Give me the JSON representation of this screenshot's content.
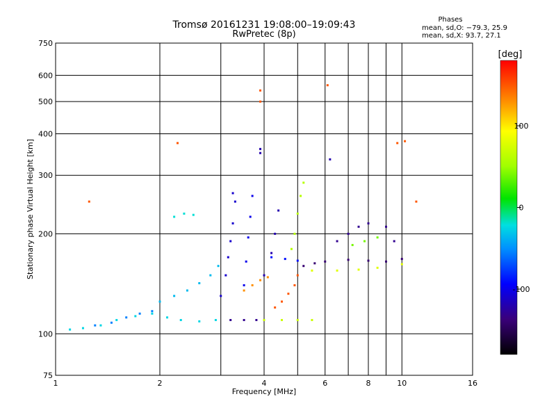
{
  "chart_data": {
    "type": "scatter",
    "title": "Tromsø 20161231 19:08:00–19:09:43",
    "subtitle": "RwPretec (8p)",
    "xlabel": "Frequency [MHz]",
    "ylabel": "Stationary phase Virtual Height [km]",
    "x_scale": "log",
    "y_scale": "log",
    "xlim": [
      1,
      16
    ],
    "ylim": [
      75,
      750
    ],
    "x_ticks": [
      1,
      2,
      4,
      6,
      8,
      10,
      16
    ],
    "x_grid": [
      1,
      2,
      3,
      4,
      5,
      6,
      7,
      8,
      9,
      10,
      16
    ],
    "y_ticks": [
      75,
      100,
      200,
      300,
      400,
      500,
      600,
      750
    ],
    "y_grid": [
      75,
      100,
      200,
      300,
      400,
      500,
      600,
      750
    ],
    "grid": true,
    "phase_stats": {
      "title": "Phases",
      "line1": "mean, sd,O: −79.3, 25.9",
      "line2": "mean, sd,X: 93.7, 27.1"
    },
    "colorbar": {
      "label": "[deg]",
      "range": [
        -180,
        180
      ],
      "ticks": [
        100,
        0,
        -100
      ]
    },
    "traces": [
      {
        "name": "",
        "phase": -25,
        "points": [
          [
            1.1,
            103
          ],
          [
            1.2,
            104
          ],
          [
            1.35,
            106
          ],
          [
            1.5,
            110
          ],
          [
            1.7,
            113
          ],
          [
            1.9,
            115
          ],
          [
            2.1,
            112
          ],
          [
            2.3,
            110
          ],
          [
            2.6,
            109
          ],
          [
            2.9,
            110
          ]
        ]
      },
      {
        "name": "",
        "phase": -55,
        "points": [
          [
            1.3,
            106
          ],
          [
            1.45,
            108
          ],
          [
            1.6,
            112
          ],
          [
            1.75,
            115
          ],
          [
            1.9,
            117
          ]
        ]
      },
      {
        "name": "",
        "phase": -35,
        "points": [
          [
            2.0,
            125
          ],
          [
            2.2,
            130
          ],
          [
            2.4,
            135
          ],
          [
            2.6,
            142
          ],
          [
            2.8,
            150
          ],
          [
            2.95,
            160
          ]
        ]
      },
      {
        "name": "",
        "phase": -110,
        "points": [
          [
            3.0,
            130
          ],
          [
            3.1,
            150
          ],
          [
            3.15,
            170
          ],
          [
            3.2,
            190
          ],
          [
            3.25,
            215
          ],
          [
            3.3,
            250
          ],
          [
            3.25,
            265
          ]
        ]
      },
      {
        "name": "",
        "phase": -100,
        "points": [
          [
            3.5,
            140
          ],
          [
            3.55,
            165
          ],
          [
            3.6,
            195
          ],
          [
            3.65,
            225
          ],
          [
            3.7,
            260
          ]
        ]
      },
      {
        "name": "",
        "phase": -130,
        "points": [
          [
            3.2,
            110
          ],
          [
            3.5,
            110
          ],
          [
            3.8,
            110
          ],
          [
            4.0,
            110
          ]
        ]
      },
      {
        "name": "",
        "phase": 70,
        "points": [
          [
            4.0,
            110
          ],
          [
            4.5,
            110
          ],
          [
            5.0,
            110
          ],
          [
            5.5,
            110
          ]
        ]
      },
      {
        "name": "",
        "phase": 130,
        "points": [
          [
            3.5,
            135
          ],
          [
            3.7,
            140
          ],
          [
            3.9,
            145
          ],
          [
            4.1,
            148
          ]
        ]
      },
      {
        "name": "",
        "phase": 150,
        "points": [
          [
            4.3,
            120
          ],
          [
            4.5,
            125
          ],
          [
            4.7,
            132
          ],
          [
            4.9,
            140
          ],
          [
            5.0,
            150
          ]
        ]
      },
      {
        "name": "",
        "phase": -120,
        "points": [
          [
            4.0,
            150
          ],
          [
            4.2,
            175
          ],
          [
            4.3,
            200
          ],
          [
            4.4,
            235
          ]
        ]
      },
      {
        "name": "",
        "phase": 60,
        "points": [
          [
            4.8,
            180
          ],
          [
            4.9,
            200
          ],
          [
            5.0,
            230
          ],
          [
            5.1,
            260
          ],
          [
            5.2,
            285
          ]
        ]
      },
      {
        "name": "",
        "phase": -140,
        "points": [
          [
            5.2,
            160
          ],
          [
            5.6,
            163
          ],
          [
            6.0,
            165
          ],
          [
            7.0,
            167
          ],
          [
            8.0,
            166
          ],
          [
            9.0,
            165
          ],
          [
            10.0,
            168
          ]
        ]
      },
      {
        "name": "",
        "phase": 80,
        "points": [
          [
            5.5,
            155
          ],
          [
            6.5,
            155
          ],
          [
            7.5,
            156
          ],
          [
            8.5,
            158
          ],
          [
            10.0,
            162
          ]
        ]
      },
      {
        "name": "",
        "phase": -90,
        "points": [
          [
            4.2,
            170
          ],
          [
            4.6,
            168
          ],
          [
            5.0,
            166
          ]
        ]
      },
      {
        "name": "",
        "phase": -130,
        "points": [
          [
            6.5,
            190
          ],
          [
            7.0,
            200
          ],
          [
            7.5,
            210
          ],
          [
            8.0,
            215
          ],
          [
            9.0,
            210
          ],
          [
            9.5,
            190
          ]
        ]
      },
      {
        "name": "",
        "phase": 40,
        "points": [
          [
            7.2,
            185
          ],
          [
            7.8,
            190
          ],
          [
            8.5,
            195
          ]
        ]
      },
      {
        "name": "",
        "phase": -20,
        "points": [
          [
            2.2,
            225
          ],
          [
            2.35,
            230
          ],
          [
            2.5,
            228
          ]
        ]
      },
      {
        "name": "",
        "phase": -120,
        "points": [
          [
            3.9,
            360
          ],
          [
            3.9,
            350
          ],
          [
            6.2,
            335
          ]
        ]
      },
      {
        "name": "",
        "phase": 150,
        "points": [
          [
            1.25,
            250
          ],
          [
            3.9,
            540
          ],
          [
            9.7,
            375
          ],
          [
            10.2,
            380
          ],
          [
            11.0,
            250
          ],
          [
            2.25,
            375
          ],
          [
            3.9,
            500
          ],
          [
            6.1,
            560
          ]
        ]
      }
    ]
  }
}
